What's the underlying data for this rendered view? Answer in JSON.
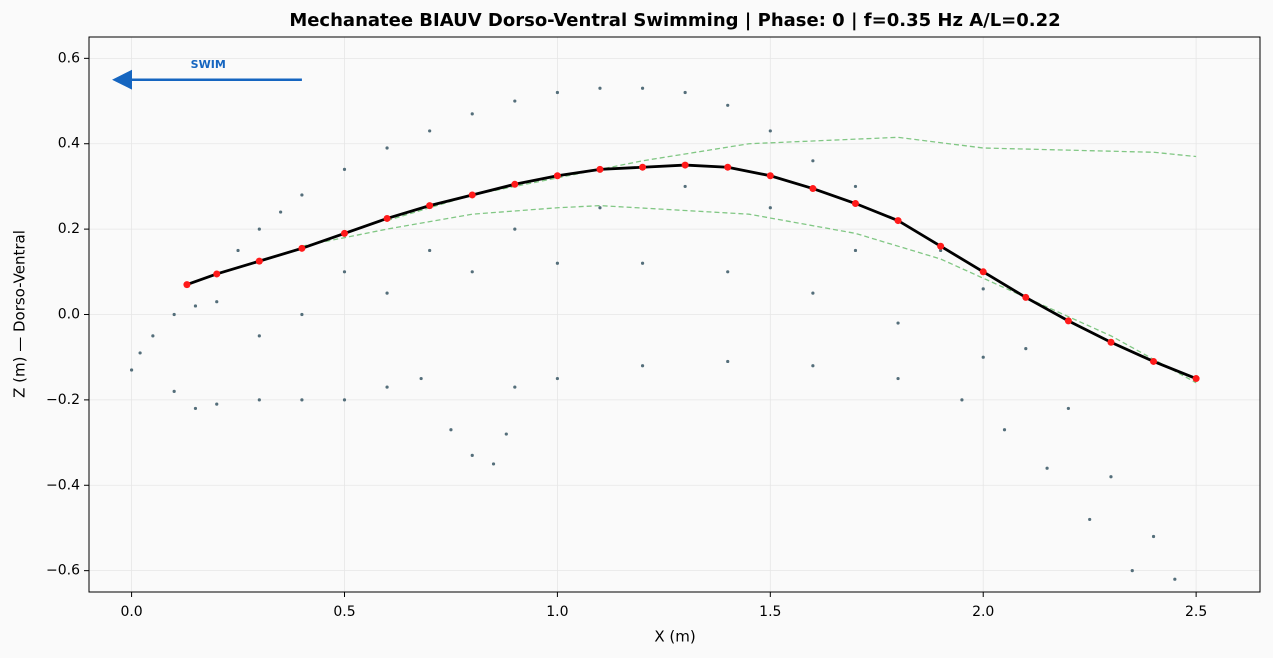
{
  "chart_data": {
    "type": "line",
    "title": "Mechanatee BIAUV Dorso-Ventral Swimming  |  Phase: 0  |  f=0.35 Hz  A/L=0.22",
    "xlabel": "X (m)",
    "ylabel": "Z (m) — Dorso-Ventral",
    "xlim": [
      -0.1,
      2.65
    ],
    "ylim": [
      -0.65,
      0.65
    ],
    "xticks": [
      {
        "value": 0,
        "label": "0.0"
      },
      0.5,
      {
        "value": 1,
        "label": "1.0"
      },
      1.5,
      {
        "value": 2,
        "label": "2.0"
      },
      2.5
    ],
    "yticks": [
      {
        "value": -0.6,
        "label": "−0.6"
      },
      {
        "value": -0.4,
        "label": "−0.4"
      },
      {
        "value": -0.2,
        "label": "−0.2"
      },
      {
        "value": 0,
        "label": "0.0"
      },
      0.2,
      0.4,
      0.6
    ],
    "grid": true,
    "scatter": {
      "color": "#546e7a",
      "x": [
        0.0,
        0.02,
        0.05,
        0.1,
        0.15,
        0.2,
        0.1,
        0.15,
        0.25,
        0.3,
        0.35,
        0.4,
        0.5,
        0.6,
        0.7,
        0.8,
        0.9,
        1.0,
        1.1,
        1.2,
        1.3,
        1.4,
        1.5,
        1.6,
        1.7,
        1.8,
        1.9,
        2.0,
        2.1,
        2.2,
        2.3,
        2.4,
        2.45,
        2.35,
        2.25,
        2.15,
        2.05,
        1.95,
        1.8,
        1.6,
        1.4,
        1.2,
        1.0,
        0.9,
        0.88,
        0.85,
        0.8,
        0.75,
        0.68,
        0.6,
        0.5,
        0.4,
        0.3,
        0.2,
        0.4,
        0.6,
        0.8,
        1.0,
        1.2,
        1.4,
        1.6,
        1.8,
        2.0,
        0.3,
        0.5,
        0.7,
        0.9,
        1.1,
        1.3,
        1.5,
        1.7
      ],
      "values": [
        -0.13,
        -0.09,
        -0.05,
        0.0,
        0.02,
        0.03,
        -0.18,
        -0.22,
        0.15,
        0.2,
        0.24,
        0.28,
        0.34,
        0.39,
        0.43,
        0.47,
        0.5,
        0.52,
        0.53,
        0.53,
        0.52,
        0.49,
        0.43,
        0.36,
        0.3,
        0.22,
        0.15,
        0.06,
        -0.08,
        -0.22,
        -0.38,
        -0.52,
        -0.62,
        -0.6,
        -0.48,
        -0.36,
        -0.27,
        -0.2,
        -0.15,
        -0.12,
        -0.11,
        -0.12,
        -0.15,
        -0.17,
        -0.28,
        -0.35,
        -0.33,
        -0.27,
        -0.15,
        -0.17,
        -0.2,
        -0.2,
        -0.2,
        -0.21,
        0.0,
        0.05,
        0.1,
        0.12,
        0.12,
        0.1,
        0.05,
        -0.02,
        -0.1,
        -0.05,
        0.1,
        0.15,
        0.2,
        0.25,
        0.3,
        0.25,
        0.15
      ]
    },
    "series": [
      {
        "color": "#81c784",
        "style": "dashed",
        "width": 1.3,
        "x": [
          0.6,
          0.8,
          1.0,
          1.2,
          1.45,
          1.8,
          2.0,
          2.2,
          2.4,
          2.5
        ],
        "values": [
          0.22,
          0.28,
          0.32,
          0.36,
          0.4,
          0.415,
          0.39,
          0.385,
          0.38,
          0.37
        ]
      },
      {
        "color": "#81c784",
        "style": "dashed",
        "width": 1.3,
        "x": [
          0.4,
          0.6,
          0.8,
          1.0,
          1.1,
          1.45,
          1.7,
          1.9,
          2.1,
          2.3,
          2.5
        ],
        "values": [
          0.16,
          0.2,
          0.235,
          0.25,
          0.255,
          0.235,
          0.19,
          0.13,
          0.04,
          -0.05,
          -0.16
        ]
      },
      {
        "color": "#000000",
        "style": "solid",
        "width": 2.8,
        "marker_color": "#ff1a1a",
        "x": [
          0.13,
          0.2,
          0.3,
          0.4,
          0.5,
          0.6,
          0.7,
          0.8,
          0.9,
          1.0,
          1.1,
          1.2,
          1.3,
          1.4,
          1.5,
          1.6,
          1.7,
          1.8,
          1.9,
          2.0,
          2.1,
          2.2,
          2.3,
          2.4,
          2.5
        ],
        "values": [
          0.07,
          0.095,
          0.125,
          0.155,
          0.19,
          0.225,
          0.255,
          0.28,
          0.305,
          0.325,
          0.34,
          0.345,
          0.35,
          0.345,
          0.325,
          0.295,
          0.26,
          0.22,
          0.16,
          0.1,
          0.04,
          -0.015,
          -0.065,
          -0.11,
          -0.15
        ]
      }
    ],
    "annotations": [
      {
        "text": "SWIM",
        "x": 0.18,
        "y": 0.585,
        "color": "#1565c0",
        "arrow": {
          "x": [
            0.4,
            -0.04
          ],
          "y": [
            0.55,
            0.55
          ]
        }
      }
    ]
  }
}
